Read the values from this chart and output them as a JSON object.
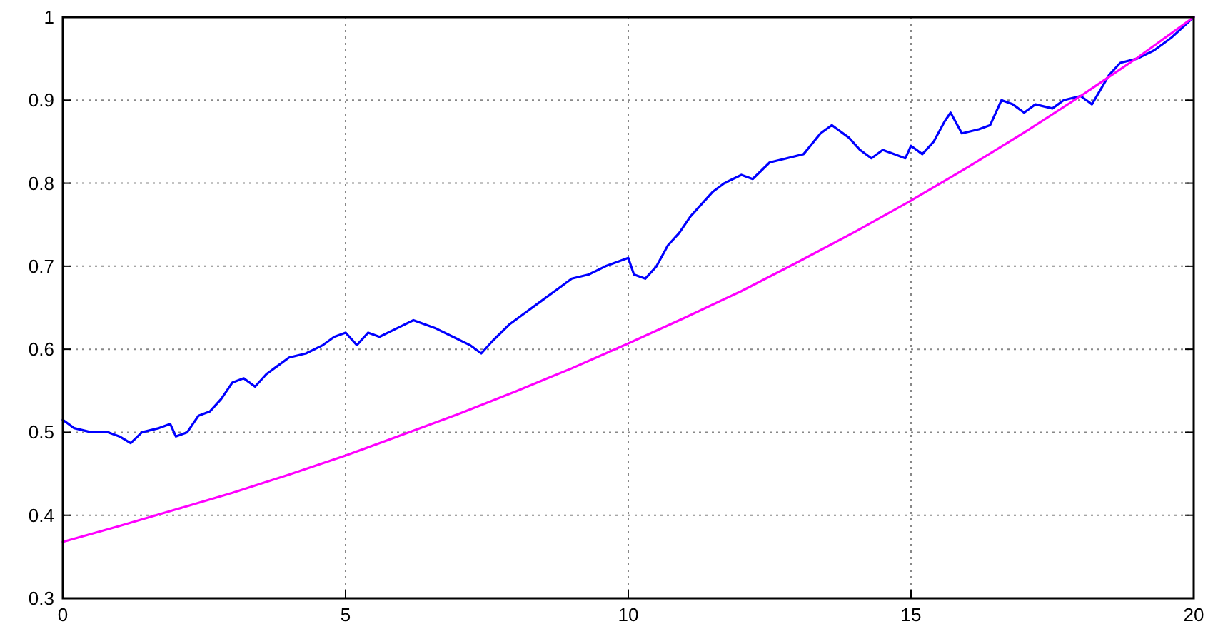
{
  "chart_data": {
    "type": "line",
    "xlim": [
      0,
      20
    ],
    "ylim": [
      0.3,
      1
    ],
    "xticks": [
      0,
      5,
      10,
      15,
      20
    ],
    "yticks": [
      0.3,
      0.4,
      0.5,
      0.6,
      0.7,
      0.8,
      0.9,
      1
    ],
    "grid": true,
    "line_style": "solid",
    "marker": "none",
    "series": [
      {
        "color": "#0000ff",
        "x": [
          0,
          0.2,
          0.5,
          0.8,
          1.0,
          1.2,
          1.4,
          1.7,
          1.9,
          2.0,
          2.2,
          2.4,
          2.6,
          2.8,
          3.0,
          3.2,
          3.4,
          3.6,
          3.8,
          4.0,
          4.3,
          4.6,
          4.8,
          5.0,
          5.2,
          5.4,
          5.6,
          5.9,
          6.2,
          6.4,
          6.6,
          6.9,
          7.2,
          7.4,
          7.6,
          7.9,
          8.2,
          8.5,
          8.8,
          9.0,
          9.3,
          9.6,
          9.8,
          10.0,
          10.1,
          10.3,
          10.5,
          10.7,
          10.9,
          11.1,
          11.3,
          11.5,
          11.7,
          12.0,
          12.2,
          12.5,
          12.8,
          13.1,
          13.4,
          13.6,
          13.9,
          14.1,
          14.3,
          14.5,
          14.7,
          14.9,
          15.0,
          15.2,
          15.4,
          15.6,
          15.7,
          15.9,
          16.2,
          16.4,
          16.6,
          16.8,
          17.0,
          17.2,
          17.5,
          17.7,
          18.0,
          18.2,
          18.5,
          18.7,
          19.0,
          19.3,
          19.6,
          20
        ],
        "values": [
          0.515,
          0.505,
          0.5,
          0.5,
          0.495,
          0.487,
          0.5,
          0.505,
          0.51,
          0.495,
          0.5,
          0.52,
          0.525,
          0.54,
          0.56,
          0.565,
          0.555,
          0.57,
          0.58,
          0.59,
          0.595,
          0.605,
          0.615,
          0.62,
          0.605,
          0.62,
          0.615,
          0.625,
          0.635,
          0.63,
          0.625,
          0.615,
          0.605,
          0.595,
          0.61,
          0.63,
          0.645,
          0.66,
          0.675,
          0.685,
          0.69,
          0.7,
          0.705,
          0.71,
          0.69,
          0.685,
          0.7,
          0.725,
          0.74,
          0.76,
          0.775,
          0.79,
          0.8,
          0.81,
          0.805,
          0.825,
          0.83,
          0.835,
          0.86,
          0.87,
          0.855,
          0.84,
          0.83,
          0.84,
          0.835,
          0.83,
          0.845,
          0.835,
          0.85,
          0.875,
          0.885,
          0.86,
          0.865,
          0.87,
          0.9,
          0.895,
          0.885,
          0.895,
          0.89,
          0.9,
          0.905,
          0.895,
          0.93,
          0.945,
          0.95,
          0.96,
          0.975,
          1.0
        ]
      },
      {
        "color": "#ff00ff",
        "x": [
          0,
          1,
          2,
          3,
          4,
          5,
          6,
          7,
          8,
          9,
          10,
          11,
          12,
          13,
          14,
          15,
          16,
          17,
          18,
          19,
          20
        ],
        "values": [
          0.368,
          0.387,
          0.407,
          0.427,
          0.449,
          0.472,
          0.497,
          0.522,
          0.549,
          0.577,
          0.607,
          0.638,
          0.67,
          0.705,
          0.741,
          0.779,
          0.819,
          0.861,
          0.905,
          0.951,
          1.0
        ]
      }
    ]
  }
}
